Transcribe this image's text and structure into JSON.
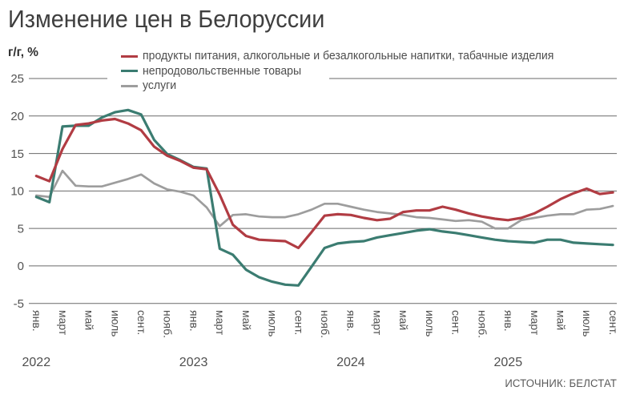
{
  "header": {
    "title": "Изменение цен в Белоруссии",
    "units_label": "г/г, %"
  },
  "source": "ИСТОЧНИК: БЕЛСТАТ",
  "chart_data": {
    "type": "line",
    "title": "Изменение цен в Белоруссии",
    "ylabel": "г/г, %",
    "ylim": [
      -5,
      25
    ],
    "y_ticks": [
      25,
      20,
      15,
      10,
      5,
      0,
      -5
    ],
    "grid": true,
    "legend_position": "top",
    "x_unit": "months, Jan 2022 – Sep 2025",
    "x_tick_labels": [
      "янв.",
      "март",
      "май",
      "июль",
      "сент.",
      "нояб.",
      "янв.",
      "март",
      "май",
      "июль",
      "сент.",
      "нояб.",
      "янв.",
      "март",
      "май",
      "июль",
      "сент.",
      "нояб.",
      "янв.",
      "март",
      "май",
      "июль",
      "сент."
    ],
    "years": [
      "2022",
      "2023",
      "2024",
      "2025"
    ],
    "series": [
      {
        "name": "продукты питания, алкогольные и безалкогольные напитки, табачные изделия",
        "color": "#b13c43",
        "values": [
          12.0,
          11.3,
          15.6,
          18.8,
          19.0,
          19.4,
          19.6,
          19.0,
          18.1,
          15.9,
          14.7,
          14.0,
          13.1,
          12.9,
          9.5,
          5.5,
          4.0,
          3.5,
          3.4,
          3.3,
          2.4,
          4.5,
          6.7,
          6.9,
          6.8,
          6.4,
          6.1,
          6.3,
          7.2,
          7.4,
          7.4,
          7.9,
          7.5,
          7.0,
          6.6,
          6.3,
          6.1,
          6.4,
          7.0,
          7.9,
          8.9,
          9.7,
          10.3,
          9.6,
          9.8
        ]
      },
      {
        "name": "непродовольственные товары",
        "color": "#3b7c71",
        "values": [
          9.2,
          8.5,
          18.6,
          18.7,
          18.7,
          19.8,
          20.5,
          20.8,
          20.2,
          16.8,
          14.9,
          14.1,
          13.2,
          13.0,
          2.3,
          1.5,
          -0.5,
          -1.5,
          -2.1,
          -2.5,
          -2.6,
          -0.1,
          2.4,
          3.0,
          3.2,
          3.3,
          3.8,
          4.1,
          4.4,
          4.7,
          4.9,
          4.6,
          4.4,
          4.1,
          3.8,
          3.5,
          3.3,
          3.2,
          3.1,
          3.5,
          3.5,
          3.1,
          3.0,
          2.9,
          2.8
        ]
      },
      {
        "name": "услуги",
        "color": "#9d9d9d",
        "values": [
          9.4,
          9.2,
          12.7,
          10.7,
          10.6,
          10.6,
          11.1,
          11.6,
          12.2,
          11.0,
          10.2,
          9.9,
          9.4,
          7.8,
          5.3,
          6.8,
          6.9,
          6.6,
          6.5,
          6.5,
          6.9,
          7.5,
          8.3,
          8.3,
          7.9,
          7.5,
          7.2,
          7.0,
          6.8,
          6.5,
          6.4,
          6.2,
          6.0,
          6.1,
          5.9,
          5.0,
          5.0,
          6.1,
          6.4,
          6.7,
          6.9,
          6.9,
          7.5,
          7.6,
          8.0
        ]
      }
    ]
  }
}
